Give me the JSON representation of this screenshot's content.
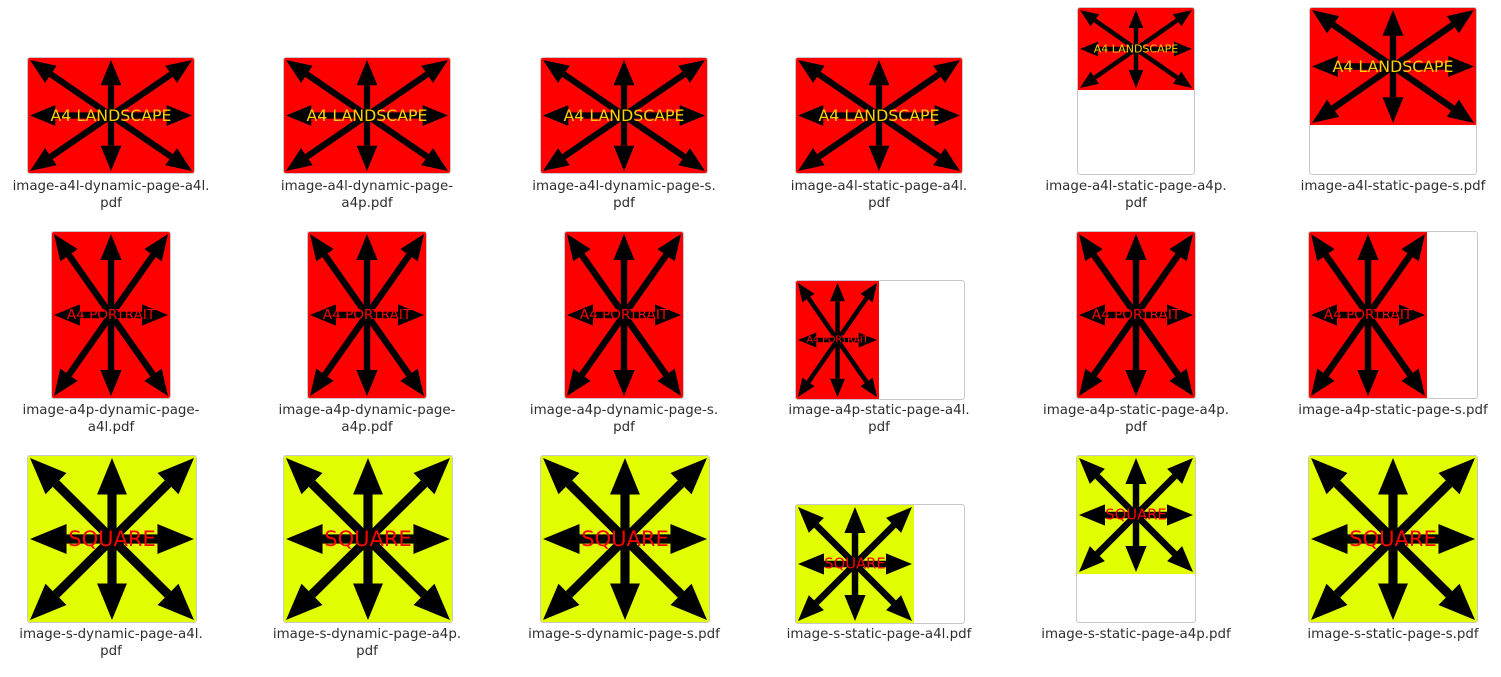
{
  "colors": {
    "landscape_bg": "#ff0000",
    "portrait_bg": "#ff0000",
    "square_bg": "#e2ff00",
    "arrow": "#000000",
    "landscape_text": "#ffd000",
    "portrait_text": "#ff0000",
    "square_text": "#ff0000",
    "label_text": "#2e2e2e"
  },
  "files": [
    {
      "kind": "landscape",
      "thumb_text": "A4 LANDSCAPE",
      "label_lines": [
        "image-a4l-dynamic-page-a4l.",
        "pdf"
      ]
    },
    {
      "kind": "landscape",
      "thumb_text": "A4 LANDSCAPE",
      "label_lines": [
        "image-a4l-dynamic-page-",
        "a4p.pdf"
      ]
    },
    {
      "kind": "landscape",
      "thumb_text": "A4 LANDSCAPE",
      "label_lines": [
        "image-a4l-dynamic-page-s.",
        "pdf"
      ]
    },
    {
      "kind": "landscape",
      "thumb_text": "A4 LANDSCAPE",
      "label_lines": [
        "image-a4l-static-page-a4l.",
        "pdf"
      ]
    },
    {
      "kind": "landscape",
      "thumb_text": "A4 LANDSCAPE",
      "label_lines": [
        "image-a4l-static-page-a4p.",
        "pdf"
      ]
    },
    {
      "kind": "landscape",
      "thumb_text": "A4 LANDSCAPE",
      "label_lines": [
        "image-a4l-static-page-s.pdf"
      ]
    },
    {
      "kind": "portrait",
      "thumb_text": "A4 PORTRAIT",
      "label_lines": [
        "image-a4p-dynamic-page-",
        "a4l.pdf"
      ]
    },
    {
      "kind": "portrait",
      "thumb_text": "A4 PORTRAIT",
      "label_lines": [
        "image-a4p-dynamic-page-",
        "a4p.pdf"
      ]
    },
    {
      "kind": "portrait",
      "thumb_text": "A4 PORTRAIT",
      "label_lines": [
        "image-a4p-dynamic-page-s.",
        "pdf"
      ]
    },
    {
      "kind": "portrait",
      "thumb_text": "A4 PORTRAIT",
      "label_lines": [
        "image-a4p-static-page-a4l.",
        "pdf"
      ]
    },
    {
      "kind": "portrait",
      "thumb_text": "A4 PORTRAIT",
      "label_lines": [
        "image-a4p-static-page-a4p.",
        "pdf"
      ]
    },
    {
      "kind": "portrait",
      "thumb_text": "A4 PORTRAIT",
      "label_lines": [
        "image-a4p-static-page-s.pdf"
      ]
    },
    {
      "kind": "square",
      "thumb_text": "SQUARE",
      "label_lines": [
        "image-s-dynamic-page-a4l.",
        "pdf"
      ]
    },
    {
      "kind": "square",
      "thumb_text": "SQUARE",
      "label_lines": [
        "image-s-dynamic-page-a4p.",
        "pdf"
      ]
    },
    {
      "kind": "square",
      "thumb_text": "SQUARE",
      "label_lines": [
        "image-s-dynamic-page-s.pdf"
      ]
    },
    {
      "kind": "square",
      "thumb_text": "SQUARE",
      "label_lines": [
        "image-s-static-page-a4l.pdf"
      ]
    },
    {
      "kind": "square",
      "thumb_text": "SQUARE",
      "label_lines": [
        "image-s-static-page-a4p.pdf"
      ]
    },
    {
      "kind": "square",
      "thumb_text": "SQUARE",
      "label_lines": [
        "image-s-static-page-s.pdf"
      ]
    }
  ]
}
